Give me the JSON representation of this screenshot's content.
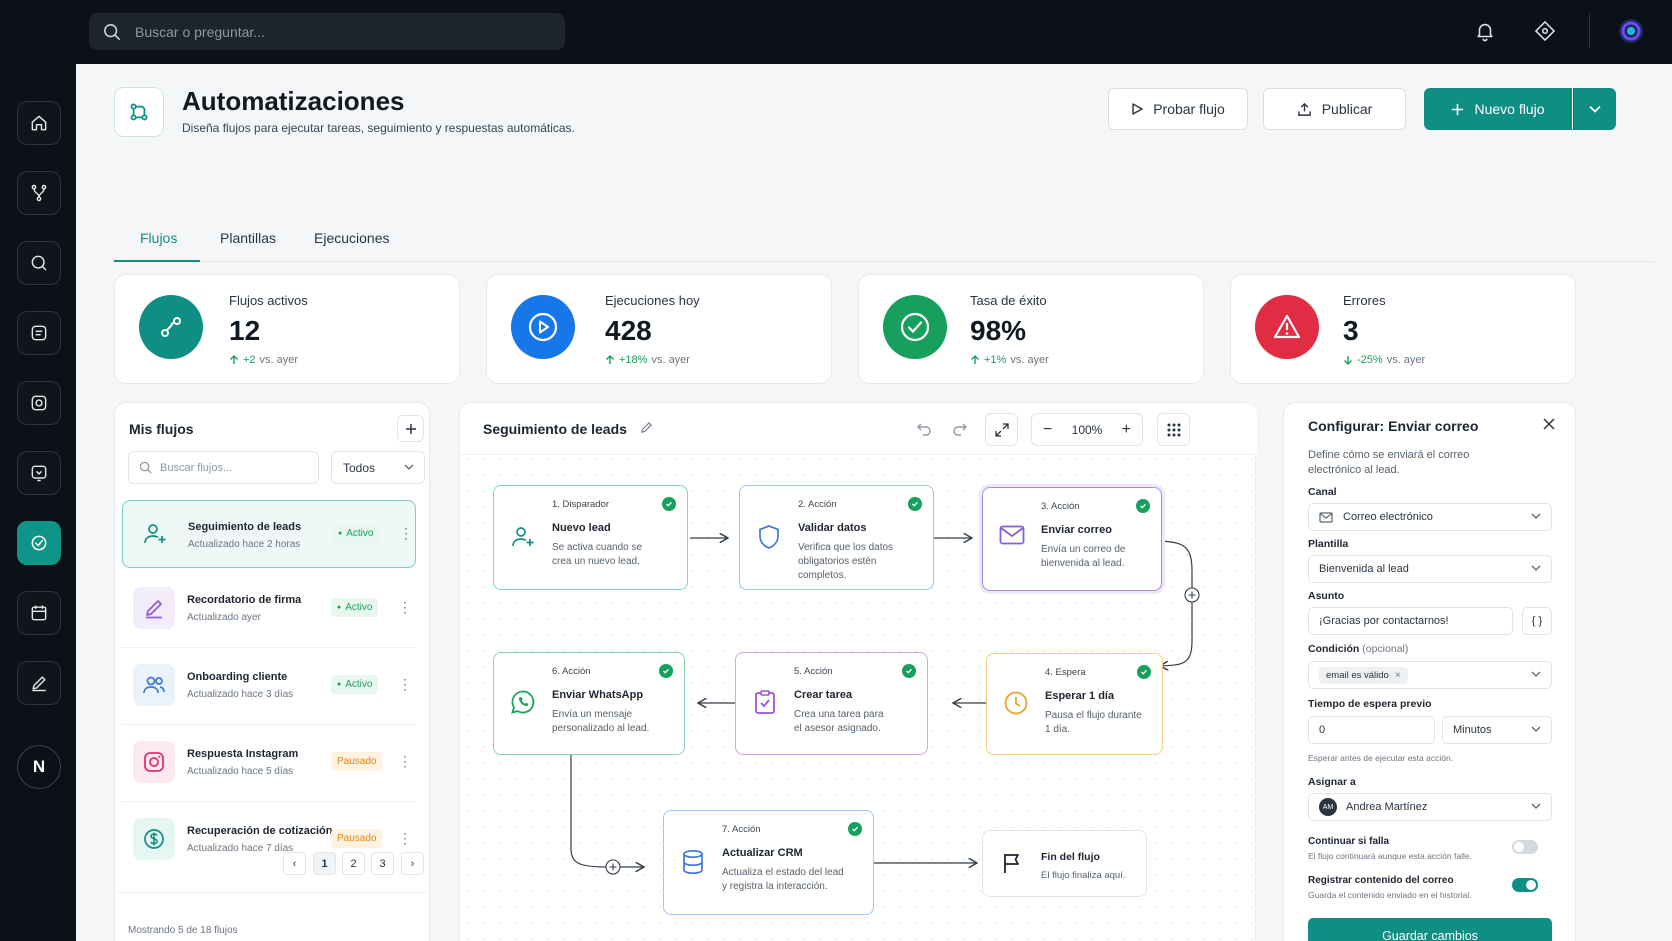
{
  "topbar": {
    "search_placeholder": "Buscar o preguntar..."
  },
  "sidebar": {
    "items": [
      "home-icon",
      "branch-icon",
      "search-icon",
      "document-icon",
      "camera-icon",
      "inbox-icon",
      "check-circle-icon",
      "calendar-icon",
      "edit-icon"
    ],
    "active_index": 6,
    "user_initial": "N"
  },
  "header": {
    "title": "Automatizaciones",
    "subtitle": "Diseña flujos para ejecutar tareas, seguimiento y respuestas automáticas.",
    "test_label": "Probar flujo",
    "publish_label": "Publicar",
    "new_label": "Nuevo flujo"
  },
  "tabs": [
    {
      "label": "Flujos",
      "active": true
    },
    {
      "label": "Plantillas",
      "active": false
    },
    {
      "label": "Ejecuciones",
      "active": false
    }
  ],
  "stats": [
    {
      "label": "Flujos activos",
      "value": "12",
      "delta": "+2",
      "delta_suffix": "vs. ayer",
      "color": "#0f8f83"
    },
    {
      "label": "Ejecuciones hoy",
      "value": "428",
      "delta": "+18%",
      "delta_suffix": "vs. ayer",
      "color": "#1877e8"
    },
    {
      "label": "Tasa de éxito",
      "value": "98%",
      "delta": "+1%",
      "delta_suffix": "vs. ayer",
      "color": "#17a05d"
    },
    {
      "label": "Errores",
      "value": "3",
      "delta": "-25%",
      "delta_suffix": "vs. ayer",
      "color": "#e02d44"
    }
  ],
  "flows_panel": {
    "title": "Mis flujos",
    "search_placeholder": "Buscar flujos...",
    "filter": "Todos",
    "items": [
      {
        "name": "Seguimiento de leads",
        "updated": "Actualizado hace 2 horas",
        "status": "Activo",
        "icon": "user-plus-icon"
      },
      {
        "name": "Recordatorio de firma",
        "updated": "Actualizado ayer",
        "status": "Activo",
        "icon": "pen-icon"
      },
      {
        "name": "Onboarding cliente",
        "updated": "Actualizado hace 3 días",
        "status": "Activo",
        "icon": "users-icon"
      },
      {
        "name": "Respuesta Instagram",
        "updated": "Actualizado hace 5 días",
        "status": "Pausado",
        "icon": "instagram-icon"
      },
      {
        "name": "Recuperación de cotización",
        "updated": "Actualizado hace 7 días",
        "status": "Pausado",
        "icon": "dollar-icon"
      }
    ],
    "footer": "Mostrando 5 de 18 flujos",
    "pages": [
      "1",
      "2",
      "3"
    ]
  },
  "canvas": {
    "title": "Seguimiento de leads",
    "zoom": "100%",
    "nodes": [
      {
        "step": "1. Disparador",
        "title": "Nuevo lead",
        "desc": [
          "Se activa cuando se",
          "crea un nuevo lead."
        ],
        "icon": "user-plus-icon",
        "color": "#2bb3a3"
      },
      {
        "step": "2. Acción",
        "title": "Validar datos",
        "desc": [
          "Verifica que los datos",
          "obligatorios estén",
          "completos."
        ],
        "icon": "shield-icon",
        "color": "#4a90e2"
      },
      {
        "step": "3. Acción",
        "title": "Enviar correo",
        "desc": [
          "Envía un correo de",
          "bienvenida al lead."
        ],
        "icon": "mail-icon",
        "color": "#8a5cd6"
      },
      {
        "step": "4. Espera",
        "title": "Esperar 1 día",
        "desc": [
          "Pausa el flujo durante",
          "1 día."
        ],
        "icon": "clock-icon",
        "color": "#f0b43c"
      },
      {
        "step": "5. Acción",
        "title": "Crear tarea",
        "desc": [
          "Crea una tarea para",
          "el asesor asignado."
        ],
        "icon": "clipboard-icon",
        "color": "#b173d9"
      },
      {
        "step": "6. Acción",
        "title": "Enviar WhatsApp",
        "desc": [
          "Envía un mensaje",
          "personalizado al lead."
        ],
        "icon": "whatsapp-icon",
        "color": "#2bb37a"
      },
      {
        "step": "7. Acción",
        "title": "Actualizar CRM",
        "desc": [
          "Actualiza el estado del lead",
          "y registra la interacción."
        ],
        "icon": "database-icon",
        "color": "#4a90e2"
      },
      {
        "step": "",
        "title": "Fin del flujo",
        "desc": [
          "El flujo finaliza aquí."
        ],
        "icon": "flag-icon",
        "color": "#d3d8dd"
      }
    ]
  },
  "config": {
    "title": "Configurar: Enviar correo",
    "desc": [
      "Define cómo se enviará el correo",
      "electrónico al lead."
    ],
    "canal_label": "Canal",
    "canal_value": "Correo electrónico",
    "plantilla_label": "Plantilla",
    "plantilla_value": "Bienvenida al lead",
    "asunto_label": "Asunto",
    "asunto_value": "¡Gracias por contactarnos!",
    "condicion_label": "Condición",
    "condicion_optional": "(opcional)",
    "condicion_tag": "email es válido",
    "tiempo_label": "Tiempo de espera previo",
    "tiempo_value": "0",
    "tiempo_unit": "Minutos",
    "tiempo_hint": "Esperar antes de ejecutar esta acción.",
    "asignar_label": "Asignar a",
    "asignar_initials": "AM",
    "asignar_value": "Andrea Martínez",
    "continuar_label": "Continuar si falla",
    "continuar_hint": "El flujo continuará aunque esta acción falle.",
    "continuar_on": false,
    "registrar_label": "Registrar contenido del correo",
    "registrar_hint": "Guarda el contenido enviado en el historial.",
    "registrar_on": true,
    "save_label": "Guardar cambios"
  }
}
